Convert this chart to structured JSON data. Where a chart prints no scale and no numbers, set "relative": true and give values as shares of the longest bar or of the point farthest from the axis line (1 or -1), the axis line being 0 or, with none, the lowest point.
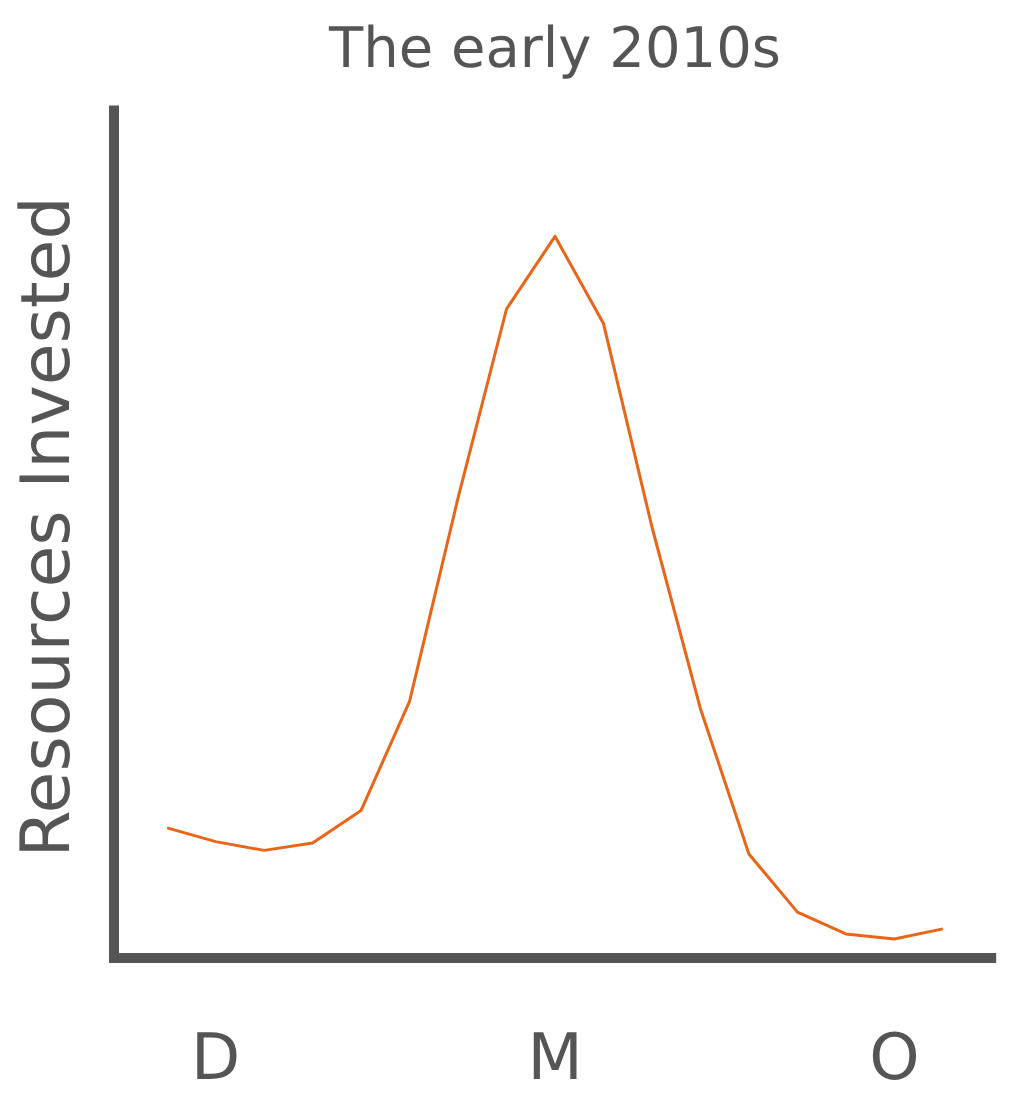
{
  "chart_data": {
    "type": "line",
    "title": "The early 2010s",
    "ylabel": "Resources Invested",
    "relative": true,
    "categories": [
      null,
      "D",
      null,
      null,
      null,
      null,
      null,
      null,
      "M",
      null,
      null,
      null,
      null,
      null,
      null,
      "O",
      null
    ],
    "series": [
      {
        "color": "#e8651a",
        "values": [
          0.186,
          0.167,
          0.155,
          0.165,
          0.21,
          0.36,
          0.64,
          0.9,
          1,
          0.88,
          0.6,
          0.35,
          0.15,
          0.07,
          0.04,
          0.033,
          0.047
        ]
      }
    ],
    "marker": "none",
    "line_style": "solid"
  }
}
